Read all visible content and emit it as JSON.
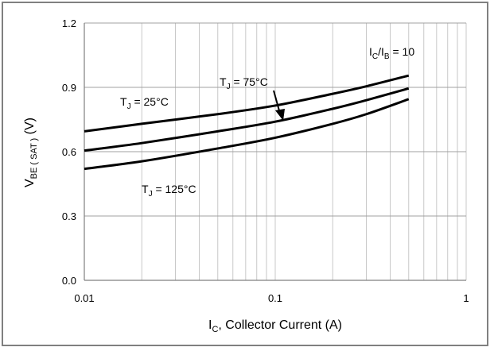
{
  "chart_data": {
    "type": "line",
    "xscale": "log",
    "xlim": [
      0.01,
      1
    ],
    "ylim": [
      0.0,
      1.2
    ],
    "x_ticks": [
      "0.01",
      "0.1",
      "1"
    ],
    "y_ticks": [
      "0.0",
      "0.3",
      "0.6",
      "0.9",
      "1.2"
    ],
    "grid": true,
    "xlabel": {
      "main": "I",
      "sub": "C",
      "rest": ", Collector Current (A)"
    },
    "ylabel": {
      "main": "V",
      "sub": "BE ( SAT )",
      "rest": "  (V)"
    },
    "condition": {
      "a": "I",
      "a_sub": "C",
      "mid": "/I",
      "b_sub": "B",
      "rest": " = 10"
    },
    "series": [
      {
        "name": "TJ = 25°C",
        "x": [
          0.01,
          0.02,
          0.05,
          0.1,
          0.2,
          0.3,
          0.5
        ],
        "y": [
          0.695,
          0.73,
          0.775,
          0.815,
          0.87,
          0.905,
          0.955
        ]
      },
      {
        "name": "TJ = 75°C",
        "x": [
          0.01,
          0.02,
          0.05,
          0.1,
          0.2,
          0.3,
          0.5
        ],
        "y": [
          0.605,
          0.64,
          0.695,
          0.74,
          0.8,
          0.84,
          0.895
        ]
      },
      {
        "name": "TJ = 125°C",
        "x": [
          0.01,
          0.02,
          0.05,
          0.1,
          0.2,
          0.3,
          0.5
        ],
        "y": [
          0.52,
          0.555,
          0.615,
          0.665,
          0.73,
          0.775,
          0.845
        ]
      }
    ],
    "annotations": [
      {
        "main": "T",
        "sub": "J",
        "rest": " = 25°C",
        "series": 0
      },
      {
        "main": "T",
        "sub": "J",
        "rest": " = 75°C",
        "series": 1
      },
      {
        "main": "T",
        "sub": "J",
        "rest": " = 125°C",
        "series": 2
      }
    ]
  }
}
